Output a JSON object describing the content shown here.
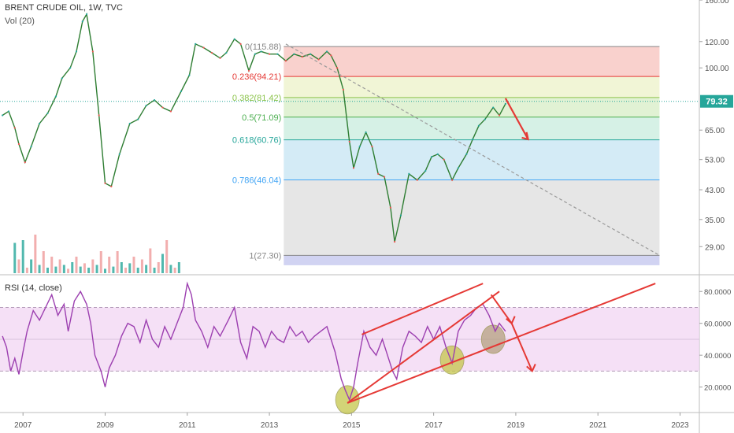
{
  "header": {
    "title": "BRENT CRUDE OIL, 1W, TVC",
    "volume_label": "Vol (20)",
    "rsi_label": "RSI (14, close)"
  },
  "chart_data": [
    {
      "type": "line",
      "panel": "price",
      "title": "BRENT CRUDE OIL, 1W, TVC",
      "scale": "log",
      "y_ticks": [
        "160.00",
        "120.00",
        "100.00",
        "79.32",
        "65.00",
        "53.00",
        "43.00",
        "35.00",
        "29.00"
      ],
      "ylim": [
        24,
        160
      ],
      "current_price": "79.32",
      "series": [
        {
          "x": [
            2006.5,
            2006.65,
            2006.8,
            2006.9,
            2007.05,
            2007.2,
            2007.4,
            2007.6,
            2007.8,
            2007.95,
            2008.15,
            2008.3,
            2008.45,
            2008.55,
            2008.7,
            2008.85,
            2009.0,
            2009.15,
            2009.35,
            2009.6,
            2009.8,
            2010.0,
            2010.2,
            2010.4,
            2010.6,
            2010.85,
            2011.05,
            2011.2,
            2011.4,
            2011.6,
            2011.8,
            2011.95,
            2012.15,
            2012.3,
            2012.5,
            2012.65,
            2012.8,
            2013.0,
            2013.2,
            2013.4,
            2013.6,
            2013.8,
            2014.0,
            2014.2,
            2014.4,
            2014.5,
            2014.65,
            2014.8,
            2014.95,
            2015.05,
            2015.2,
            2015.35,
            2015.5,
            2015.65,
            2015.8,
            2015.95,
            2016.05,
            2016.2,
            2016.4,
            2016.6,
            2016.8,
            2016.95,
            2017.1,
            2017.25,
            2017.45,
            2017.6,
            2017.8,
            2017.95,
            2018.1,
            2018.25,
            2018.45,
            2018.6,
            2018.75
          ],
          "y": [
            72,
            74,
            66,
            59,
            52,
            58,
            68,
            73,
            82,
            93,
            100,
            112,
            138,
            145,
            112,
            72,
            45,
            44,
            55,
            68,
            70,
            77,
            80,
            76,
            74,
            85,
            95,
            118,
            115,
            111,
            107,
            111,
            122,
            118,
            98,
            110,
            112,
            110,
            110,
            105,
            110,
            108,
            110,
            106,
            112,
            109,
            100,
            86,
            60,
            50,
            58,
            64,
            58,
            48,
            47,
            38,
            30,
            36,
            48,
            46,
            49,
            54,
            55,
            53,
            46,
            50,
            55,
            61,
            67,
            70,
            76,
            72,
            78
          ]
        }
      ],
      "fibonacci": {
        "levels": [
          {
            "ratio": "0",
            "label": "0(115.88)",
            "price": 115.88,
            "color": "#888888"
          },
          {
            "ratio": "0.236",
            "label": "0.236(94.21)",
            "price": 94.21,
            "color": "#e53935"
          },
          {
            "ratio": "0.382",
            "label": "0.382(81.42)",
            "price": 81.42,
            "color": "#8bc34a"
          },
          {
            "ratio": "0.5",
            "label": "0.5(71.09)",
            "price": 71.09,
            "color": "#4caf50"
          },
          {
            "ratio": "0.618",
            "label": "0.618(60.76)",
            "price": 60.76,
            "color": "#26a69a"
          },
          {
            "ratio": "0.786",
            "label": "0.786(46.04)",
            "price": 46.04,
            "color": "#42a5f5"
          },
          {
            "ratio": "1",
            "label": "1(27.30)",
            "price": 27.3,
            "color": "#888888"
          }
        ],
        "zone_colors": [
          "#f8c9c4",
          "#eef3cf",
          "#dcf0cd",
          "#cfeee2",
          "#cde7f5",
          "#e2e2e2",
          "#c9cbf0"
        ],
        "start_x": 2013.35,
        "end_x": 2022.5,
        "bottom_price": 25.5
      },
      "annotations": [
        {
          "type": "dashed-trend",
          "from": [
            2013.4,
            118
          ],
          "to": [
            2022.5,
            27.3
          ],
          "color": "#999999"
        },
        {
          "type": "arrow",
          "from": [
            2018.75,
            81
          ],
          "to": [
            2019.3,
            61
          ],
          "color": "#e53935"
        }
      ]
    },
    {
      "type": "bar",
      "panel": "volume",
      "label": "Vol (20)",
      "x": [
        2006.8,
        2006.9,
        2007.0,
        2007.1,
        2007.2,
        2007.3,
        2007.4,
        2007.5,
        2007.6,
        2007.7,
        2007.8,
        2007.9,
        2008.0,
        2008.1,
        2008.2,
        2008.3,
        2008.4,
        2008.5,
        2008.6,
        2008.7,
        2008.8,
        2008.9,
        2009.0,
        2009.1,
        2009.2,
        2009.3,
        2009.4,
        2009.5,
        2009.6,
        2009.7,
        2009.8,
        2009.9,
        2010.0,
        2010.1,
        2010.2,
        2010.3,
        2010.4,
        2010.5,
        2010.6,
        2010.7,
        2010.8
      ],
      "values": [
        55,
        25,
        60,
        10,
        25,
        70,
        15,
        40,
        10,
        30,
        12,
        25,
        15,
        8,
        20,
        30,
        12,
        18,
        10,
        25,
        15,
        40,
        8,
        30,
        12,
        40,
        20,
        10,
        18,
        30,
        10,
        25,
        15,
        45,
        10,
        20,
        35,
        60,
        15,
        10,
        20
      ],
      "colors": [
        "#26a69a",
        "#ef9a9a"
      ]
    },
    {
      "type": "line",
      "panel": "rsi",
      "title": "RSI (14, close)",
      "y_ticks": [
        "80.0000",
        "60.0000",
        "40.0000",
        "20.0000"
      ],
      "ylim": [
        5,
        90
      ],
      "band": [
        30,
        70
      ],
      "mid": 50,
      "band_color": "#f1d6f3",
      "line_color": "#9c3fb0",
      "x_ticks": [
        "2007",
        "2009",
        "2011",
        "2013",
        "2015",
        "2017",
        "2019",
        "2021",
        "2023"
      ],
      "x_tick_values": [
        2007,
        2009,
        2011,
        2013,
        2015,
        2017,
        2019,
        2021,
        2023
      ],
      "series": [
        {
          "x": [
            2006.5,
            2006.6,
            2006.7,
            2006.8,
            2006.9,
            2007.0,
            2007.1,
            2007.25,
            2007.4,
            2007.55,
            2007.7,
            2007.85,
            2008.0,
            2008.1,
            2008.25,
            2008.4,
            2008.55,
            2008.65,
            2008.75,
            2008.9,
            2009.0,
            2009.1,
            2009.25,
            2009.4,
            2009.55,
            2009.7,
            2009.85,
            2010.0,
            2010.15,
            2010.3,
            2010.45,
            2010.6,
            2010.75,
            2010.9,
            2011.0,
            2011.1,
            2011.2,
            2011.35,
            2011.5,
            2011.65,
            2011.8,
            2012.0,
            2012.15,
            2012.3,
            2012.45,
            2012.6,
            2012.75,
            2012.9,
            2013.05,
            2013.2,
            2013.35,
            2013.5,
            2013.65,
            2013.8,
            2013.95,
            2014.1,
            2014.25,
            2014.4,
            2014.5,
            2014.6,
            2014.75,
            2014.85,
            2014.95,
            2015.05,
            2015.15,
            2015.3,
            2015.45,
            2015.6,
            2015.75,
            2015.9,
            2016.0,
            2016.1,
            2016.25,
            2016.4,
            2016.55,
            2016.7,
            2016.85,
            2017.0,
            2017.15,
            2017.3,
            2017.45,
            2017.6,
            2017.75,
            2017.9,
            2018.05,
            2018.2,
            2018.35,
            2018.5,
            2018.6,
            2018.75
          ],
          "y": [
            52,
            45,
            30,
            38,
            28,
            42,
            55,
            68,
            62,
            70,
            78,
            65,
            72,
            55,
            74,
            80,
            72,
            60,
            40,
            30,
            20,
            32,
            40,
            52,
            60,
            58,
            48,
            62,
            50,
            45,
            58,
            50,
            60,
            70,
            85,
            78,
            62,
            55,
            45,
            58,
            52,
            62,
            70,
            48,
            38,
            58,
            55,
            45,
            55,
            50,
            48,
            58,
            52,
            55,
            48,
            52,
            55,
            58,
            50,
            42,
            25,
            18,
            12,
            20,
            35,
            55,
            45,
            40,
            50,
            38,
            30,
            25,
            45,
            55,
            52,
            48,
            58,
            50,
            58,
            45,
            35,
            55,
            62,
            65,
            70,
            72,
            65,
            55,
            60,
            55
          ]
        }
      ],
      "annotations": [
        {
          "type": "channel-line",
          "from": [
            2014.9,
            10
          ],
          "to": [
            2018.6,
            80
          ],
          "color": "#e53935"
        },
        {
          "type": "channel-line",
          "from": [
            2015.25,
            53
          ],
          "to": [
            2018.2,
            85
          ],
          "color": "#e53935"
        },
        {
          "type": "channel-line",
          "from": [
            2014.9,
            10
          ],
          "to": [
            2022.4,
            85
          ],
          "color": "#e53935"
        },
        {
          "type": "arrow",
          "from": [
            2018.4,
            78
          ],
          "to": [
            2018.9,
            60
          ],
          "color": "#e53935"
        },
        {
          "type": "arrow",
          "from": [
            2018.9,
            60
          ],
          "to": [
            2019.4,
            30
          ],
          "color": "#e53935"
        },
        {
          "type": "circle",
          "at": [
            2014.9,
            12
          ],
          "color": "#c5c64a"
        },
        {
          "type": "circle",
          "at": [
            2017.45,
            37
          ],
          "color": "#c5c64a"
        },
        {
          "type": "circle",
          "at": [
            2018.45,
            50
          ],
          "color": "#b5a080"
        }
      ]
    }
  ]
}
